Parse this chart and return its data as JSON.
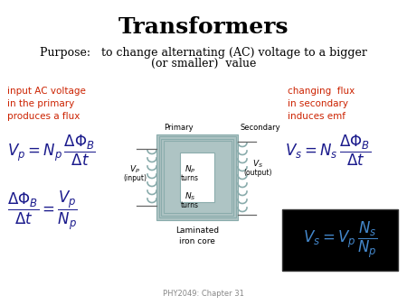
{
  "title": "Transformers",
  "purpose_text1": "Purpose:   to change alternating (AC) voltage to a bigger",
  "purpose_text2": "(or smaller)  value",
  "left_red_text": "input AC voltage\nin the primary\nproduces a flux",
  "right_red_text": "changing  flux\nin secondary\ninduces emf",
  "footer": "PHY2049: Chapter 31",
  "bg_color": "#ffffff",
  "title_color": "#000000",
  "purpose_color": "#000000",
  "red_color": "#cc2200",
  "blue_color": "#1a1a8c",
  "transformer_fill": "#aec4c4",
  "transformer_inner": "#c8dcdc",
  "black_box_color": "#000000",
  "cyan_color": "#4488cc"
}
